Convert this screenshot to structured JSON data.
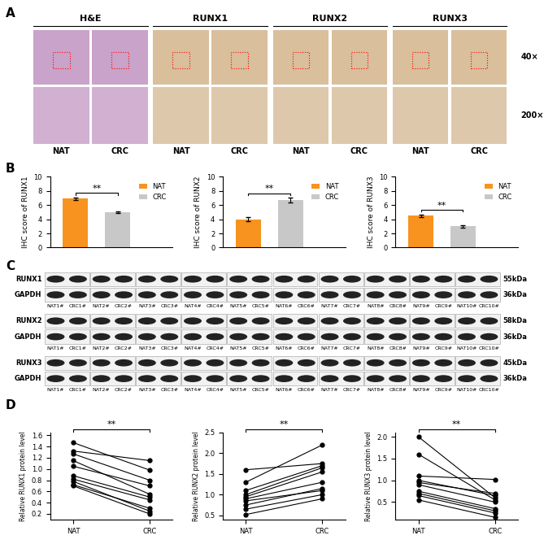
{
  "panel_labels": [
    "A",
    "B",
    "C",
    "D"
  ],
  "panel_a": {
    "columns": [
      {
        "title": "H&E",
        "labels": [
          "NAT",
          "CRC"
        ]
      },
      {
        "title": "RUNX1",
        "labels": [
          "NAT",
          "CRC"
        ]
      },
      {
        "title": "RUNX2",
        "labels": [
          "NAT",
          "CRC"
        ]
      },
      {
        "title": "RUNX3",
        "labels": [
          "NAT",
          "CRC"
        ]
      }
    ],
    "magnifications": [
      "40×",
      "200×"
    ]
  },
  "panel_c": {
    "blots": [
      {
        "target": "RUNX1",
        "target_kda": "55kDa",
        "control": "GAPDH",
        "control_kda": "36kDa"
      },
      {
        "target": "RUNX2",
        "target_kda": "58kDa",
        "control": "GAPDH",
        "control_kda": "36kDa"
      },
      {
        "target": "RUNX3",
        "target_kda": "45kDa",
        "control": "GAPDH",
        "control_kda": "36kDa"
      }
    ],
    "lanes": [
      [
        "NAT1#",
        "CRC1#"
      ],
      [
        "NAT2#",
        "CRC2#"
      ],
      [
        "NAT3#",
        "CRC3#"
      ],
      [
        "NAT4#",
        "CRC4#"
      ],
      [
        "NAT5#",
        "CRC5#"
      ],
      [
        "NAT6#",
        "CRC6#"
      ],
      [
        "NAT7#",
        "CRC7#"
      ],
      [
        "NAT8#",
        "CRC8#"
      ],
      [
        "NAT9#",
        "CRC9#"
      ],
      [
        "NAT10#",
        "CRC10#"
      ]
    ]
  },
  "chart_data": [
    {
      "type": "bar",
      "ylabel": "IHC score of RUNX1",
      "series": [
        {
          "name": "NAT",
          "color": "#F7931E",
          "values": [
            6.9
          ],
          "errors": [
            0.2
          ]
        },
        {
          "name": "CRC",
          "color": "#C8C8C8",
          "values": [
            5.0
          ],
          "errors": [
            0.15
          ]
        }
      ],
      "ylim": [
        0,
        10
      ],
      "yticks": [
        0,
        2,
        4,
        6,
        8,
        10
      ],
      "legend": "upper right",
      "annotations": [
        "**"
      ],
      "tick_labels": "y"
    },
    {
      "type": "bar",
      "ylabel": "IHC score of RUNX2",
      "series": [
        {
          "name": "NAT",
          "color": "#F7931E",
          "values": [
            4.0
          ],
          "errors": [
            0.3
          ]
        },
        {
          "name": "CRC",
          "color": "#C8C8C8",
          "values": [
            6.7
          ],
          "errors": [
            0.35
          ]
        }
      ],
      "ylim": [
        0,
        10
      ],
      "yticks": [
        0,
        2,
        4,
        6,
        8,
        10
      ],
      "legend": "upper right",
      "annotations": [
        "**"
      ],
      "tick_labels": "y"
    },
    {
      "type": "bar",
      "ylabel": "IHC score of RUNX3",
      "series": [
        {
          "name": "NAT",
          "color": "#F7931E",
          "values": [
            4.5
          ],
          "errors": [
            0.2
          ]
        },
        {
          "name": "CRC",
          "color": "#C8C8C8",
          "values": [
            3.0
          ],
          "errors": [
            0.15
          ]
        }
      ],
      "ylim": [
        0,
        10
      ],
      "yticks": [
        0,
        2,
        4,
        6,
        8,
        10
      ],
      "legend": "upper right",
      "annotations": [
        "**"
      ],
      "tick_labels": "y"
    },
    {
      "type": "line",
      "ylabel": "Relative RUNX1 protein level",
      "categories": [
        "NAT",
        "CRC"
      ],
      "color": "#000000",
      "marker": "o",
      "annotations": [
        "**"
      ],
      "series": [
        {
          "values": [
            1.47,
            0.98
          ]
        },
        {
          "values": [
            1.32,
            1.15
          ]
        },
        {
          "values": [
            1.27,
            0.8
          ]
        },
        {
          "values": [
            1.15,
            0.55
          ]
        },
        {
          "values": [
            1.05,
            0.7
          ]
        },
        {
          "values": [
            0.88,
            0.5
          ]
        },
        {
          "values": [
            0.82,
            0.45
          ]
        },
        {
          "values": [
            0.78,
            0.25
          ]
        },
        {
          "values": [
            0.72,
            0.3
          ]
        },
        {
          "values": [
            0.7,
            0.2
          ]
        }
      ],
      "ylim": [
        0.1,
        1.65
      ],
      "yticks": [
        0.2,
        0.4,
        0.6,
        0.8,
        {
          "value": 1.0,
          "label": "1.0"
        },
        1.2,
        1.4,
        1.6
      ]
    },
    {
      "type": "line",
      "ylabel": "Relative RUNX2 protein level",
      "categories": [
        "NAT",
        "CRC"
      ],
      "color": "#000000",
      "marker": "o",
      "annotations": [
        "**"
      ],
      "series": [
        {
          "values": [
            1.6,
            1.75
          ]
        },
        {
          "values": [
            1.3,
            2.2
          ]
        },
        {
          "values": [
            1.1,
            1.7
          ]
        },
        {
          "values": [
            1.0,
            1.65
          ]
        },
        {
          "values": [
            0.95,
            1.55
          ]
        },
        {
          "values": [
            0.9,
            1.3
          ]
        },
        {
          "values": [
            0.85,
            1.1
          ]
        },
        {
          "values": [
            0.75,
            1.15
          ]
        },
        {
          "values": [
            0.65,
            1.0
          ]
        },
        {
          "values": [
            0.52,
            0.9
          ]
        }
      ],
      "ylim": [
        0.4,
        2.5
      ],
      "yticks": [
        0.5,
        {
          "value": 1.0,
          "label": "1.0"
        },
        1.5,
        {
          "value": 2.0,
          "label": "2.0"
        },
        2.5
      ]
    },
    {
      "type": "line",
      "ylabel": "Relative RUNX3 protein level",
      "categories": [
        "NAT",
        "CRC"
      ],
      "color": "#000000",
      "marker": "o",
      "annotations": [
        "**"
      ],
      "series": [
        {
          "values": [
            2.0,
            0.6
          ]
        },
        {
          "values": [
            1.6,
            0.55
          ]
        },
        {
          "values": [
            1.1,
            1.02
          ]
        },
        {
          "values": [
            1.0,
            0.65
          ]
        },
        {
          "values": [
            0.95,
            0.7
          ]
        },
        {
          "values": [
            0.9,
            0.5
          ]
        },
        {
          "values": [
            0.75,
            0.35
          ]
        },
        {
          "values": [
            0.7,
            0.3
          ]
        },
        {
          "values": [
            0.65,
            0.25
          ]
        },
        {
          "values": [
            0.55,
            0.15
          ]
        }
      ],
      "ylim": [
        0.1,
        2.1
      ],
      "yticks": [
        0.5,
        {
          "value": 1.0,
          "label": "1.0"
        },
        1.5,
        {
          "value": 2.0,
          "label": "2.0"
        }
      ]
    }
  ]
}
